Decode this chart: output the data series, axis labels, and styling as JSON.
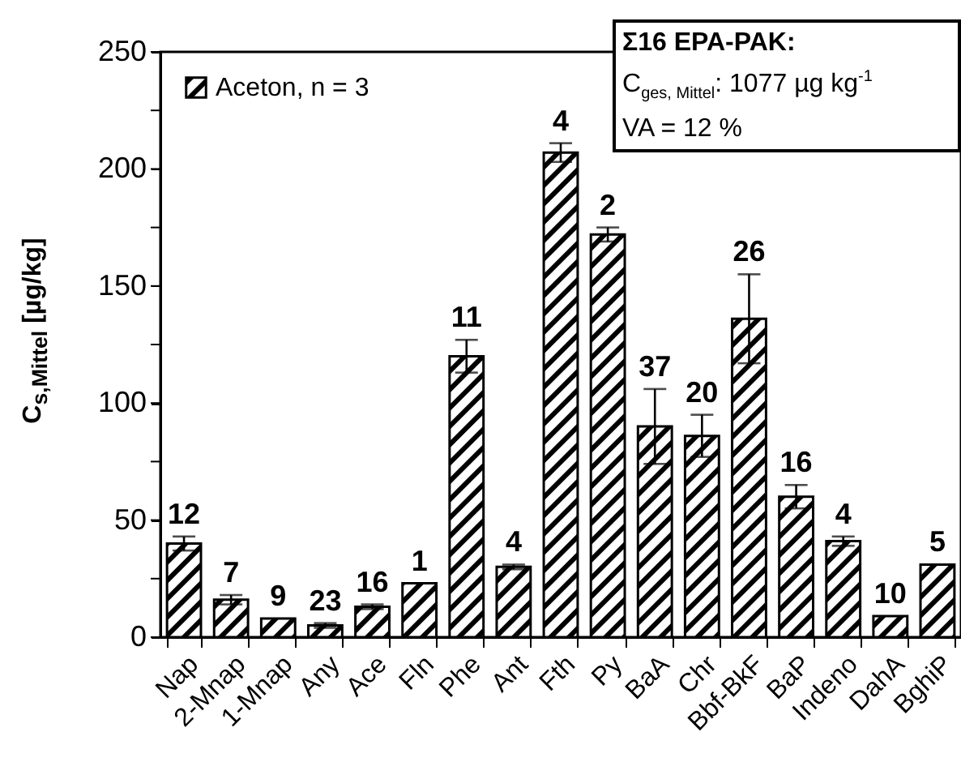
{
  "chart_data": {
    "type": "bar",
    "ylabel": "C$_{s,Mittel}$ [µg/kg]",
    "categories": [
      "Nap",
      "2-Mnap",
      "1-Mnap",
      "Any",
      "Ace",
      "Fln",
      "Phe",
      "Ant",
      "Fth",
      "Py",
      "BaA",
      "Chr",
      "Bbf-BkF",
      "BaP",
      "Indeno",
      "DahA",
      "BghiP"
    ],
    "series": [
      {
        "name": "Aceton, n = 3",
        "color": "#000000",
        "values": [
          40,
          16,
          8,
          5,
          13,
          23,
          120,
          30,
          207,
          172,
          90,
          86,
          136,
          60,
          41,
          9,
          31
        ],
        "errors": [
          3,
          2,
          null,
          1,
          1,
          null,
          7,
          1,
          4,
          3,
          16,
          9,
          19,
          5,
          2,
          null,
          null
        ]
      }
    ],
    "ylim": [
      0,
      250
    ],
    "yticks": [
      0,
      {
        "value": 25,
        "label": null
      },
      50,
      {
        "value": 75,
        "label": null
      },
      100,
      {
        "value": 125,
        "label": null
      },
      150,
      {
        "value": 175,
        "label": null
      },
      200,
      {
        "value": 225,
        "label": null
      },
      250
    ],
    "legend": "top left",
    "grid": false,
    "annotations": [
      "Σ16 EPA-PAK:",
      "C$_{ges, Mittel}$: 1077 µg kg$^{-1}$",
      "VA = 12 %",
      {
        "text": "12",
        "x": "Nap",
        "y": 43
      },
      {
        "text": "7",
        "x": "2-Mnap",
        "y": 18
      },
      {
        "text": "9",
        "x": "1-Mnap",
        "y": 8
      },
      {
        "text": "23",
        "x": "Any",
        "y": 6
      },
      {
        "text": "16",
        "x": "Ace",
        "y": 14
      },
      {
        "text": "1",
        "x": "Fln",
        "y": 23
      },
      {
        "text": "11",
        "x": "Phe",
        "y": 127
      },
      {
        "text": "4",
        "x": "Ant",
        "y": 31
      },
      {
        "text": "4",
        "x": "Fth",
        "y": 211
      },
      {
        "text": "2",
        "x": "Py",
        "y": 175
      },
      {
        "text": "37",
        "x": "BaA",
        "y": 106
      },
      {
        "text": "20",
        "x": "Chr",
        "y": 95
      },
      {
        "text": "26",
        "x": "Bbf-BkF",
        "y": 155
      },
      {
        "text": "16",
        "x": "BaP",
        "y": 65
      },
      {
        "text": "4",
        "x": "Indeno",
        "y": 43
      },
      {
        "text": "10",
        "x": "DahA",
        "y": 9
      },
      {
        "text": "5",
        "x": "BghiP",
        "y": 31
      }
    ]
  }
}
